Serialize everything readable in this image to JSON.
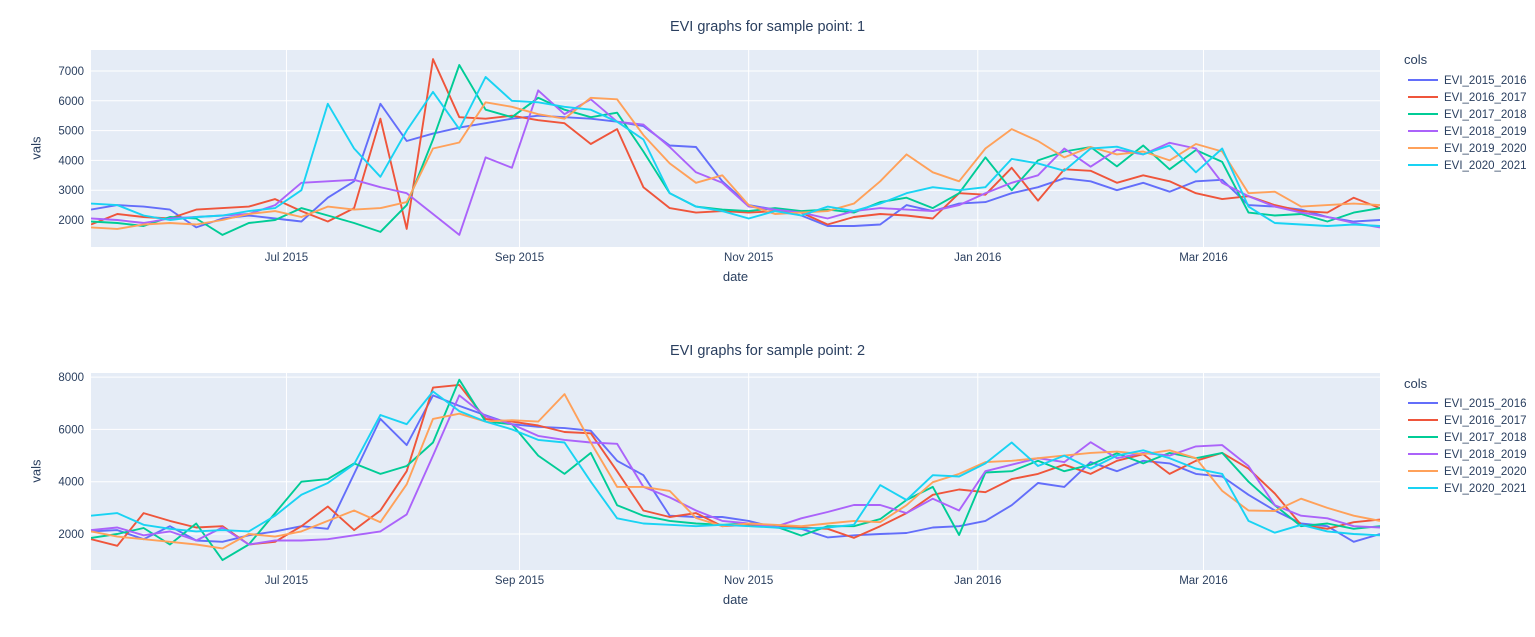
{
  "figure": {
    "background": "#ffffff",
    "plot_bgcolor": "#e5ecf6",
    "grid_color": "#ffffff",
    "text_color": "#2a3f5f"
  },
  "chart_data": [
    {
      "type": "line",
      "title": "EVI graphs for sample point: 1",
      "xlabel": "date",
      "ylabel": "vals",
      "legend_title": "cols",
      "legend_position": "right",
      "grid": true,
      "ylim": [
        1090,
        7710
      ],
      "yticks": [
        2000,
        3000,
        4000,
        5000,
        6000,
        7000
      ],
      "xticks": [
        {
          "label": "Jul 2015",
          "pos": 7.43
        },
        {
          "label": "Sep 2015",
          "pos": 16.29
        },
        {
          "label": "Nov 2015",
          "pos": 25.0
        },
        {
          "label": "Jan 2016",
          "pos": 33.71
        },
        {
          "label": "Mar 2016",
          "pos": 42.29
        }
      ],
      "x": [
        "2015-05-10",
        "2015-05-17",
        "2015-05-24",
        "2015-05-31",
        "2015-06-07",
        "2015-06-14",
        "2015-06-21",
        "2015-06-28",
        "2015-07-05",
        "2015-07-12",
        "2015-07-19",
        "2015-07-26",
        "2015-08-02",
        "2015-08-09",
        "2015-08-16",
        "2015-08-23",
        "2015-08-30",
        "2015-09-06",
        "2015-09-13",
        "2015-09-20",
        "2015-09-27",
        "2015-10-04",
        "2015-10-11",
        "2015-10-18",
        "2015-10-25",
        "2015-11-01",
        "2015-11-08",
        "2015-11-15",
        "2015-11-22",
        "2015-11-29",
        "2015-12-06",
        "2015-12-13",
        "2015-12-20",
        "2015-12-27",
        "2016-01-03",
        "2016-01-10",
        "2016-01-17",
        "2016-01-24",
        "2016-01-31",
        "2016-02-07",
        "2016-02-14",
        "2016-02-21",
        "2016-02-28",
        "2016-03-06",
        "2016-03-13",
        "2016-03-20",
        "2016-03-27",
        "2016-04-03",
        "2016-04-10",
        "2016-04-17"
      ],
      "series": [
        {
          "name": "EVI_2015_2016",
          "color": "#636efa",
          "values": [
            2350,
            2500,
            2450,
            2350,
            1750,
            2050,
            2150,
            2050,
            1950,
            2750,
            3300,
            5900,
            4650,
            4900,
            5100,
            5250,
            5400,
            5500,
            5450,
            5400,
            5300,
            5150,
            4500,
            4450,
            3300,
            2500,
            2350,
            2150,
            1800,
            1800,
            1850,
            2500,
            2300,
            2550,
            2600,
            2900,
            3100,
            3400,
            3300,
            3000,
            3250,
            2950,
            3300,
            3350,
            2500,
            2450,
            2350,
            2100,
            1950,
            2000
          ]
        },
        {
          "name": "EVI_2016_2017",
          "color": "#ef553b",
          "values": [
            1850,
            2200,
            2100,
            2050,
            2350,
            2400,
            2450,
            2700,
            2300,
            1950,
            2400,
            5400,
            1700,
            7400,
            5450,
            5400,
            5500,
            5350,
            5250,
            4550,
            5050,
            3100,
            2400,
            2250,
            2300,
            2250,
            2300,
            2250,
            1850,
            2100,
            2200,
            2150,
            2050,
            2900,
            2850,
            3750,
            2650,
            3700,
            3650,
            3250,
            3500,
            3300,
            2900,
            2700,
            2800,
            2500,
            2300,
            2250,
            2750,
            2400
          ]
        },
        {
          "name": "EVI_2017_2018",
          "color": "#00cc96",
          "values": [
            1950,
            1900,
            1800,
            2100,
            2050,
            1500,
            1900,
            2000,
            2400,
            2150,
            1900,
            1600,
            2500,
            4700,
            7200,
            5700,
            5450,
            6100,
            5700,
            5450,
            5600,
            4300,
            2900,
            2450,
            2350,
            2300,
            2400,
            2300,
            2350,
            2250,
            2600,
            2750,
            2400,
            2900,
            4100,
            3000,
            4000,
            4300,
            4450,
            3800,
            4500,
            3700,
            4350,
            3950,
            2250,
            2150,
            2200,
            1950,
            2250,
            2400
          ]
        },
        {
          "name": "EVI_2018_2019",
          "color": "#ab63fa",
          "values": [
            2050,
            2000,
            1900,
            2050,
            2100,
            2150,
            2200,
            2500,
            3250,
            3300,
            3350,
            3100,
            2900,
            2200,
            1500,
            4100,
            3750,
            6350,
            5550,
            6050,
            5300,
            5200,
            4450,
            3600,
            3250,
            2450,
            2350,
            2250,
            2050,
            2300,
            2400,
            2350,
            2300,
            2500,
            2900,
            3250,
            3500,
            4400,
            3790,
            4360,
            4200,
            4590,
            4400,
            3250,
            2800,
            2450,
            2250,
            2100,
            1900,
            1750
          ]
        },
        {
          "name": "EVI_2019_2020",
          "color": "#ffa15a",
          "values": [
            1750,
            1700,
            1850,
            1900,
            1850,
            2000,
            2200,
            2300,
            2100,
            2450,
            2350,
            2400,
            2600,
            4400,
            4600,
            5950,
            5800,
            5550,
            5400,
            6100,
            6050,
            4850,
            3900,
            3250,
            3500,
            2500,
            2200,
            2250,
            2300,
            2550,
            3300,
            4200,
            3600,
            3300,
            4400,
            5050,
            4650,
            4100,
            4450,
            4200,
            4300,
            4000,
            4550,
            4300,
            2900,
            2950,
            2450,
            2500,
            2550,
            2500
          ]
        },
        {
          "name": "EVI_2020_2021",
          "color": "#19d3f3",
          "values": [
            2550,
            2500,
            2150,
            2000,
            2100,
            2150,
            2300,
            2400,
            3000,
            5900,
            4400,
            3450,
            5000,
            6300,
            5050,
            6800,
            6000,
            5950,
            5800,
            5700,
            5300,
            4700,
            2900,
            2450,
            2300,
            2050,
            2300,
            2150,
            2450,
            2300,
            2550,
            2900,
            3100,
            3000,
            3100,
            4050,
            3900,
            3650,
            4400,
            4460,
            4200,
            4500,
            3600,
            4400,
            2450,
            1900,
            1850,
            1800,
            1850,
            1800
          ]
        }
      ]
    },
    {
      "type": "line",
      "title": "EVI graphs for sample point: 2",
      "xlabel": "date",
      "ylabel": "vals",
      "legend_title": "cols",
      "legend_position": "right",
      "grid": true,
      "ylim": [
        620,
        8150
      ],
      "yticks": [
        2000,
        4000,
        6000,
        8000
      ],
      "xticks": [
        {
          "label": "Jul 2015",
          "pos": 7.43
        },
        {
          "label": "Sep 2015",
          "pos": 16.29
        },
        {
          "label": "Nov 2015",
          "pos": 25.0
        },
        {
          "label": "Jan 2016",
          "pos": 33.71
        },
        {
          "label": "Mar 2016",
          "pos": 42.29
        }
      ],
      "x": [
        "2015-05-10",
        "2015-05-17",
        "2015-05-24",
        "2015-05-31",
        "2015-06-07",
        "2015-06-14",
        "2015-06-21",
        "2015-06-28",
        "2015-07-05",
        "2015-07-12",
        "2015-07-19",
        "2015-07-26",
        "2015-08-02",
        "2015-08-09",
        "2015-08-16",
        "2015-08-23",
        "2015-08-30",
        "2015-09-06",
        "2015-09-13",
        "2015-09-20",
        "2015-09-27",
        "2015-10-04",
        "2015-10-11",
        "2015-10-18",
        "2015-10-25",
        "2015-11-01",
        "2015-11-08",
        "2015-11-15",
        "2015-11-22",
        "2015-11-29",
        "2015-12-06",
        "2015-12-13",
        "2015-12-20",
        "2015-12-27",
        "2016-01-03",
        "2016-01-10",
        "2016-01-17",
        "2016-01-24",
        "2016-01-31",
        "2016-02-07",
        "2016-02-14",
        "2016-02-21",
        "2016-02-28",
        "2016-03-06",
        "2016-03-13",
        "2016-03-20",
        "2016-03-27",
        "2016-04-03",
        "2016-04-10",
        "2016-04-17"
      ],
      "series": [
        {
          "name": "EVI_2015_2016",
          "color": "#636efa",
          "values": [
            2100,
            2150,
            1800,
            2300,
            1750,
            1700,
            1950,
            2100,
            2300,
            2200,
            4300,
            6400,
            5400,
            7300,
            6900,
            6540,
            6200,
            6100,
            6050,
            5950,
            4800,
            4250,
            2700,
            2650,
            2650,
            2500,
            2250,
            2200,
            1870,
            1950,
            2000,
            2040,
            2250,
            2300,
            2500,
            3100,
            3950,
            3800,
            4750,
            4400,
            4800,
            4700,
            4300,
            4200,
            3500,
            2900,
            2400,
            2300,
            1700,
            2000
          ]
        },
        {
          "name": "EVI_2016_2017",
          "color": "#ef553b",
          "values": [
            1800,
            1550,
            2800,
            2500,
            2250,
            2300,
            1600,
            1700,
            2300,
            3050,
            2150,
            2900,
            4400,
            7600,
            7700,
            6400,
            6300,
            6150,
            5900,
            5850,
            4400,
            2900,
            2650,
            2800,
            2300,
            2350,
            2300,
            2250,
            2200,
            1850,
            2300,
            2800,
            3500,
            3700,
            3600,
            4100,
            4300,
            4650,
            4300,
            4800,
            5050,
            4300,
            4800,
            5100,
            4500,
            3550,
            2350,
            2200,
            2450,
            2550
          ]
        },
        {
          "name": "EVI_2017_2018",
          "color": "#00cc96",
          "values": [
            1850,
            2000,
            2230,
            1600,
            2400,
            1000,
            1600,
            2800,
            4000,
            4100,
            4700,
            4300,
            4600,
            5500,
            7900,
            6300,
            6200,
            5000,
            4300,
            5100,
            3100,
            2700,
            2500,
            2400,
            2350,
            2400,
            2300,
            1940,
            2300,
            2300,
            2570,
            3300,
            3800,
            1960,
            4350,
            4400,
            4800,
            4400,
            4650,
            5090,
            4700,
            5100,
            4900,
            5100,
            4000,
            3100,
            2300,
            2400,
            2200,
            2300
          ]
        },
        {
          "name": "EVI_2018_2019",
          "color": "#ab63fa",
          "values": [
            2150,
            2250,
            1950,
            2100,
            1750,
            2250,
            1600,
            1750,
            1750,
            1800,
            1950,
            2100,
            2750,
            5000,
            7300,
            6500,
            6200,
            5750,
            5600,
            5500,
            5450,
            3800,
            3400,
            2900,
            2500,
            2400,
            2270,
            2600,
            2840,
            3110,
            3110,
            2800,
            3350,
            2900,
            4400,
            4650,
            4900,
            4750,
            5510,
            4900,
            5100,
            5000,
            5350,
            5400,
            4600,
            3100,
            2700,
            2600,
            2300,
            2250
          ]
        },
        {
          "name": "EVI_2019_2020",
          "color": "#ffa15a",
          "values": [
            2100,
            1900,
            1800,
            1700,
            1600,
            1450,
            2000,
            1900,
            2100,
            2500,
            2900,
            2450,
            3900,
            6400,
            6600,
            6300,
            6350,
            6300,
            7350,
            5500,
            3800,
            3800,
            3650,
            2610,
            2300,
            2400,
            2350,
            2300,
            2400,
            2500,
            2450,
            3100,
            3980,
            4300,
            4750,
            4800,
            4900,
            5000,
            5100,
            5150,
            5050,
            5200,
            4900,
            3650,
            2900,
            2880,
            3350,
            3000,
            2700,
            2500
          ]
        },
        {
          "name": "EVI_2020_2021",
          "color": "#19d3f3",
          "values": [
            2700,
            2800,
            2350,
            2200,
            2100,
            2150,
            2100,
            2700,
            3500,
            3950,
            4670,
            6550,
            6200,
            7450,
            6700,
            6300,
            6000,
            5600,
            5500,
            4000,
            2600,
            2400,
            2350,
            2300,
            2350,
            2300,
            2250,
            2200,
            2250,
            2350,
            3870,
            3300,
            4250,
            4200,
            4700,
            5500,
            4600,
            5000,
            4500,
            5000,
            5200,
            4900,
            4500,
            4300,
            2500,
            2050,
            2350,
            2100,
            2000,
            1950
          ]
        }
      ]
    }
  ]
}
